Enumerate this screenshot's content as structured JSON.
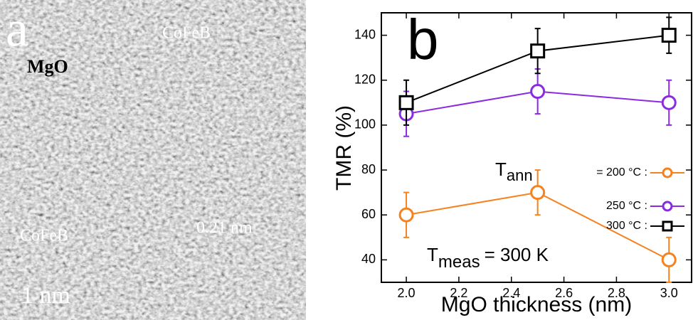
{
  "panel_a": {
    "letter": "a",
    "labels": [
      "CoFeB",
      "MgO",
      "CoFeB",
      "0.21 nm"
    ],
    "scale_bar": "1 nm"
  },
  "chart_data": {
    "type": "line",
    "panel_letter": "b",
    "x_label": "MgO thickness (nm)",
    "y_label": "TMR (%)",
    "x": [
      2.0,
      2.5,
      3.0
    ],
    "series": [
      {
        "name": "= 200 °C :",
        "color": "#f5821f",
        "marker": "circle",
        "values": [
          60,
          70,
          40
        ],
        "errors": [
          10,
          10,
          10
        ]
      },
      {
        "name": "250 °C :",
        "color": "#8a2be2",
        "marker": "circle",
        "values": [
          105,
          115,
          110
        ],
        "errors": [
          10,
          10,
          10
        ]
      },
      {
        "name": "300 °C :",
        "color": "#000000",
        "marker": "square",
        "values": [
          110,
          133,
          140
        ],
        "errors": [
          10,
          10,
          8
        ]
      }
    ],
    "legend_title": {
      "main": "T",
      "sub": "ann"
    },
    "annotation": {
      "main": "T",
      "sub": "meas",
      "rest": "= 300 K"
    },
    "xlim": [
      1.905,
      3.086
    ],
    "ylim": [
      30,
      150
    ],
    "xticks": [
      {
        "value": 2,
        "label": "2.0"
      },
      2.2,
      2.4,
      2.6,
      2.8,
      {
        "value": 3,
        "label": "3.0"
      }
    ],
    "yticks": [
      40,
      60,
      80,
      100,
      120,
      140
    ]
  }
}
